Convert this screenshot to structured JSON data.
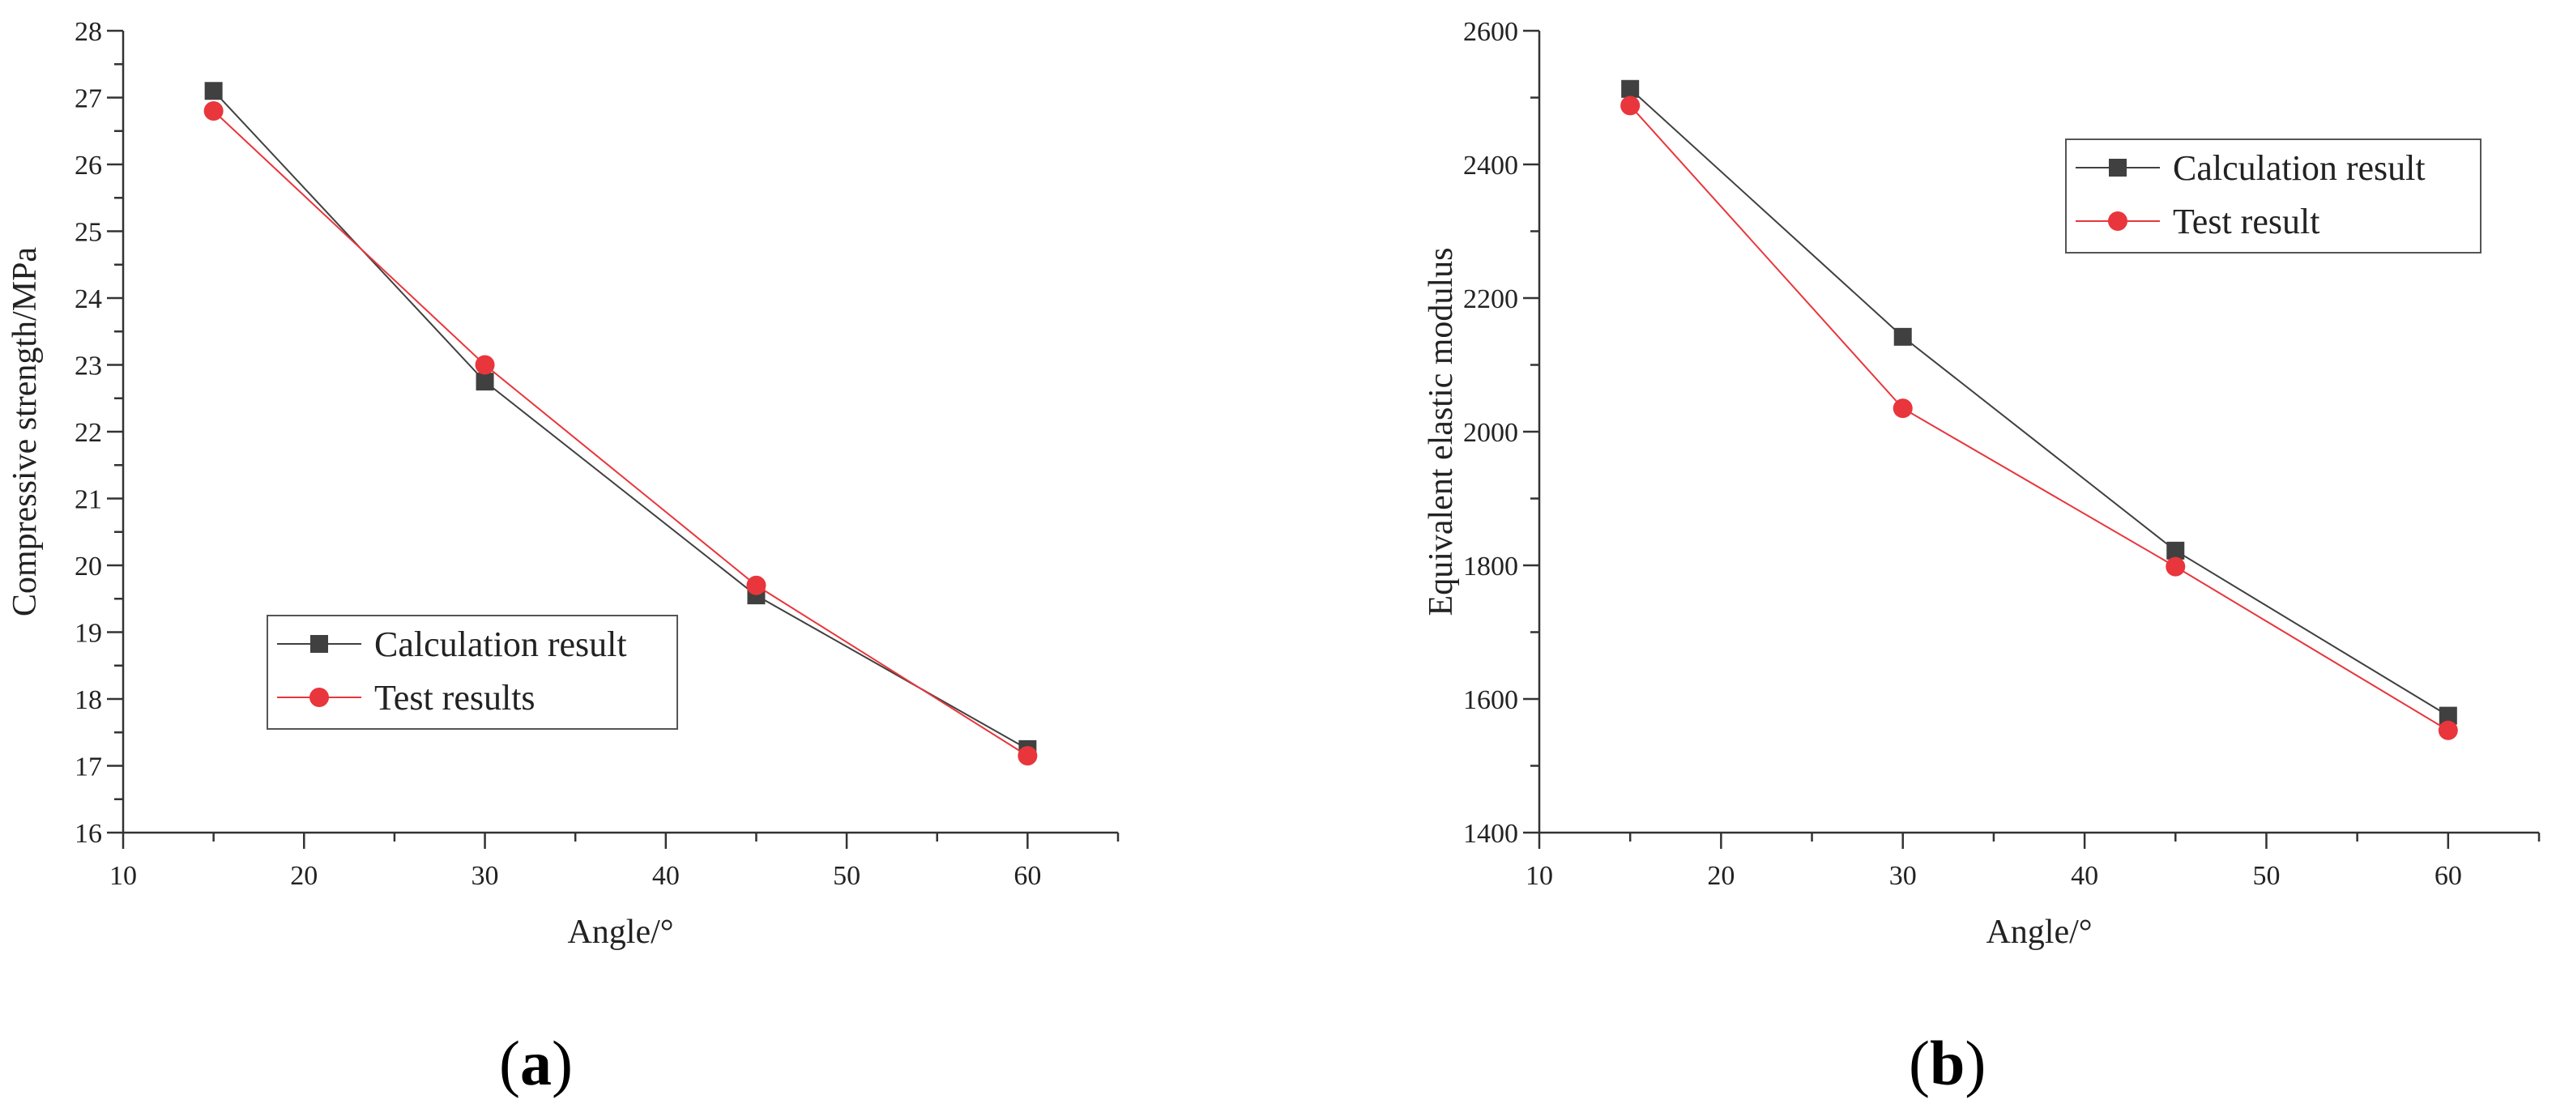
{
  "panels": [
    {
      "label_open": "(",
      "label_letter": "a",
      "label_close": ")"
    },
    {
      "label_open": "(",
      "label_letter": "b",
      "label_close": ")"
    }
  ],
  "colors": {
    "calc": "#404040",
    "test": "#e8363c",
    "axis": "#333333"
  },
  "chart_data": [
    {
      "type": "line",
      "title": "",
      "xlabel": "Angle/°",
      "ylabel": "Compressive strength/MPa",
      "xlim": [
        10,
        65
      ],
      "ylim": [
        16,
        28
      ],
      "xticks": [
        10,
        20,
        30,
        40,
        50,
        60
      ],
      "yticks": [
        16,
        17,
        18,
        19,
        20,
        21,
        22,
        23,
        24,
        25,
        26,
        27,
        28
      ],
      "grid": false,
      "legend_position": "lower-left",
      "x": [
        15,
        30,
        45,
        60
      ],
      "series": [
        {
          "name": "Calculation result",
          "marker": "square",
          "values": [
            27.1,
            22.75,
            19.55,
            17.25
          ]
        },
        {
          "name": "Test results",
          "marker": "circle",
          "values": [
            26.8,
            23.0,
            19.7,
            17.15
          ]
        }
      ]
    },
    {
      "type": "line",
      "title": "",
      "xlabel": "Angle/°",
      "ylabel": "Equivalent elastic modulus",
      "xlim": [
        10,
        65
      ],
      "ylim": [
        1400,
        2600
      ],
      "xticks": [
        10,
        20,
        30,
        40,
        50,
        60
      ],
      "yticks": [
        1400,
        1600,
        1800,
        2000,
        2200,
        2400,
        2600
      ],
      "grid": false,
      "legend_position": "top-right",
      "x": [
        15,
        30,
        45,
        60
      ],
      "series": [
        {
          "name": "Calculation result",
          "marker": "square",
          "values": [
            2513,
            2142,
            1822,
            1575
          ]
        },
        {
          "name": "Test result",
          "marker": "circle",
          "values": [
            2488,
            2035,
            1798,
            1553
          ]
        }
      ]
    }
  ]
}
